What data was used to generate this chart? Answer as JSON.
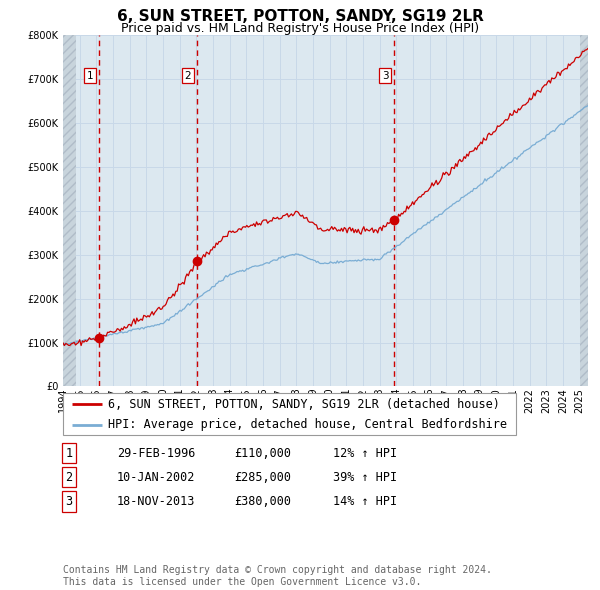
{
  "title": "6, SUN STREET, POTTON, SANDY, SG19 2LR",
  "subtitle": "Price paid vs. HM Land Registry's House Price Index (HPI)",
  "legend_line1": "6, SUN STREET, POTTON, SANDY, SG19 2LR (detached house)",
  "legend_line2": "HPI: Average price, detached house, Central Bedfordshire",
  "sale_info": [
    {
      "label": "1",
      "date": "29-FEB-1996",
      "price": "£110,000",
      "pct": "12% ↑ HPI"
    },
    {
      "label": "2",
      "date": "10-JAN-2002",
      "price": "£285,000",
      "pct": "39% ↑ HPI"
    },
    {
      "label": "3",
      "date": "18-NOV-2013",
      "price": "£380,000",
      "pct": "14% ↑ HPI"
    }
  ],
  "sale_t": [
    1996.16,
    2002.03,
    2013.88
  ],
  "sale_p": [
    110000,
    285000,
    380000
  ],
  "vline_dates": [
    1996.16,
    2002.03,
    2013.88
  ],
  "sale_labels": [
    "1",
    "2",
    "3"
  ],
  "ylim": [
    0,
    800000
  ],
  "xlim_start": 1994.0,
  "xlim_end": 2025.5,
  "grid_color": "#c8d8e8",
  "plot_bg": "#dce8f0",
  "hatch_bg": "#c8d4dc",
  "red_line_color": "#cc0000",
  "blue_line_color": "#7aadd4",
  "vline_color": "#cc0000",
  "footer": "Contains HM Land Registry data © Crown copyright and database right 2024.\nThis data is licensed under the Open Government Licence v3.0.",
  "title_fontsize": 11,
  "subtitle_fontsize": 9,
  "axis_fontsize": 7,
  "legend_fontsize": 8.5,
  "table_fontsize": 8.5,
  "footer_fontsize": 7
}
